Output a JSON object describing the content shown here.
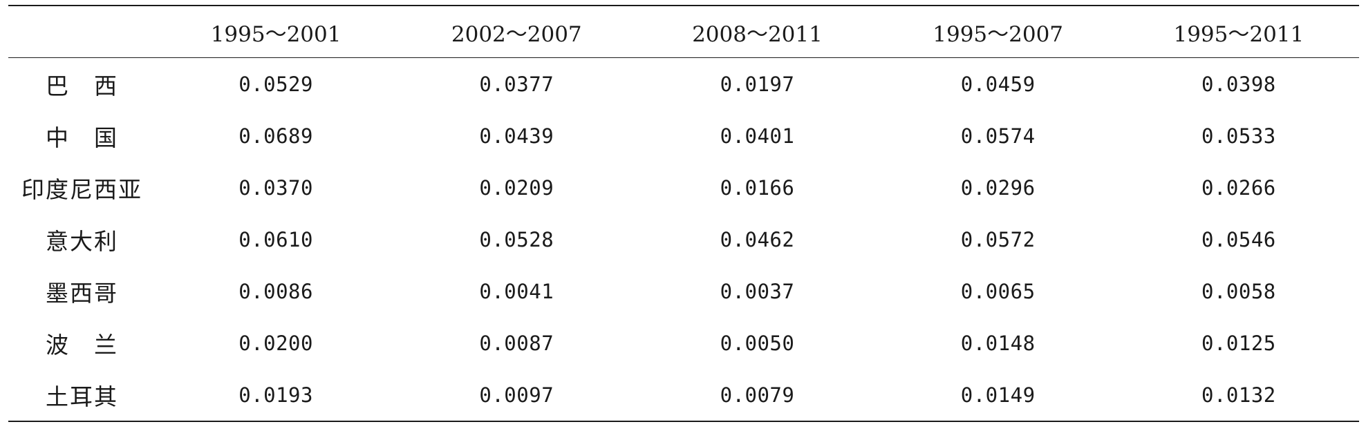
{
  "table": {
    "columns": [
      "",
      "1995～2001",
      "2002～2007",
      "2008～2011",
      "1995～2007",
      "1995～2011"
    ],
    "rows": [
      {
        "country": "巴　西",
        "values": [
          "0.0529",
          "0.0377",
          "0.0197",
          "0.0459",
          "0.0398"
        ]
      },
      {
        "country": "中　国",
        "values": [
          "0.0689",
          "0.0439",
          "0.0401",
          "0.0574",
          "0.0533"
        ]
      },
      {
        "country": "印度尼西亚",
        "values": [
          "0.0370",
          "0.0209",
          "0.0166",
          "0.0296",
          "0.0266"
        ]
      },
      {
        "country": "意大利",
        "values": [
          "0.0610",
          "0.0528",
          "0.0462",
          "0.0572",
          "0.0546"
        ]
      },
      {
        "country": "墨西哥",
        "values": [
          "0.0086",
          "0.0041",
          "0.0037",
          "0.0065",
          "0.0058"
        ]
      },
      {
        "country": "波　兰",
        "values": [
          "0.0200",
          "0.0087",
          "0.0050",
          "0.0148",
          "0.0125"
        ]
      },
      {
        "country": "土耳其",
        "values": [
          "0.0193",
          "0.0097",
          "0.0079",
          "0.0149",
          "0.0132"
        ]
      }
    ]
  }
}
